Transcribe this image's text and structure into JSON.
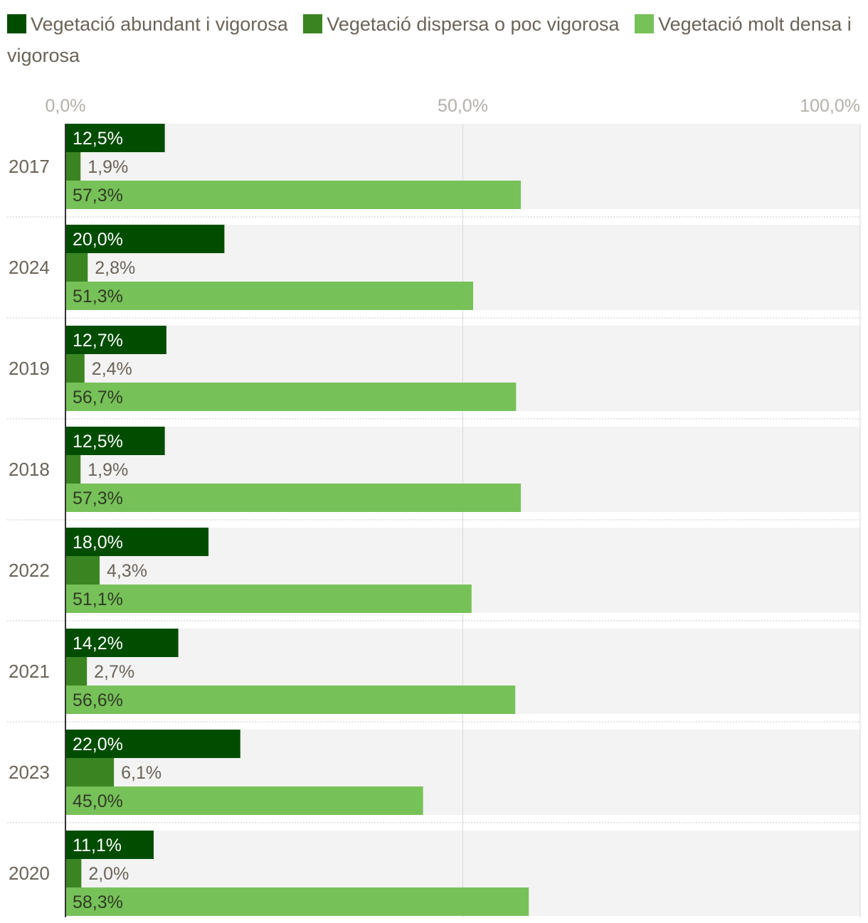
{
  "chart_data": {
    "type": "bar",
    "orientation": "horizontal",
    "title": "",
    "xlabel": "",
    "ylabel": "",
    "xlim": [
      0,
      100
    ],
    "x_ticks": [
      "0,0%",
      "50,0%",
      "100,0%"
    ],
    "categories": [
      "2017",
      "2024",
      "2019",
      "2018",
      "2022",
      "2021",
      "2023",
      "2020"
    ],
    "series": [
      {
        "name": "Vegetació abundant i vigorosa",
        "color": "#004d00",
        "values": [
          12.5,
          20.0,
          12.7,
          12.5,
          18.0,
          14.2,
          22.0,
          11.1
        ],
        "labels": [
          "12,5%",
          "20,0%",
          "12,7%",
          "12,5%",
          "18,0%",
          "14,2%",
          "22,0%",
          "11,1%"
        ]
      },
      {
        "name": "Vegetació dispersa o poc vigorosa",
        "color": "#3a8522",
        "values": [
          1.9,
          2.8,
          2.4,
          1.9,
          4.3,
          2.7,
          6.1,
          2.0
        ],
        "labels": [
          "1,9%",
          "2,8%",
          "2,4%",
          "1,9%",
          "4,3%",
          "2,7%",
          "6,1%",
          "2,0%"
        ]
      },
      {
        "name": "Vegetació molt densa i vigorosa",
        "color": "#77c159",
        "values": [
          57.3,
          51.3,
          56.7,
          57.3,
          51.1,
          56.6,
          45.0,
          58.3
        ],
        "labels": [
          "57,3%",
          "51,3%",
          "56,7%",
          "57,3%",
          "51,1%",
          "56,6%",
          "45,0%",
          "58,3%"
        ]
      }
    ],
    "legend": "top",
    "grid": true
  }
}
